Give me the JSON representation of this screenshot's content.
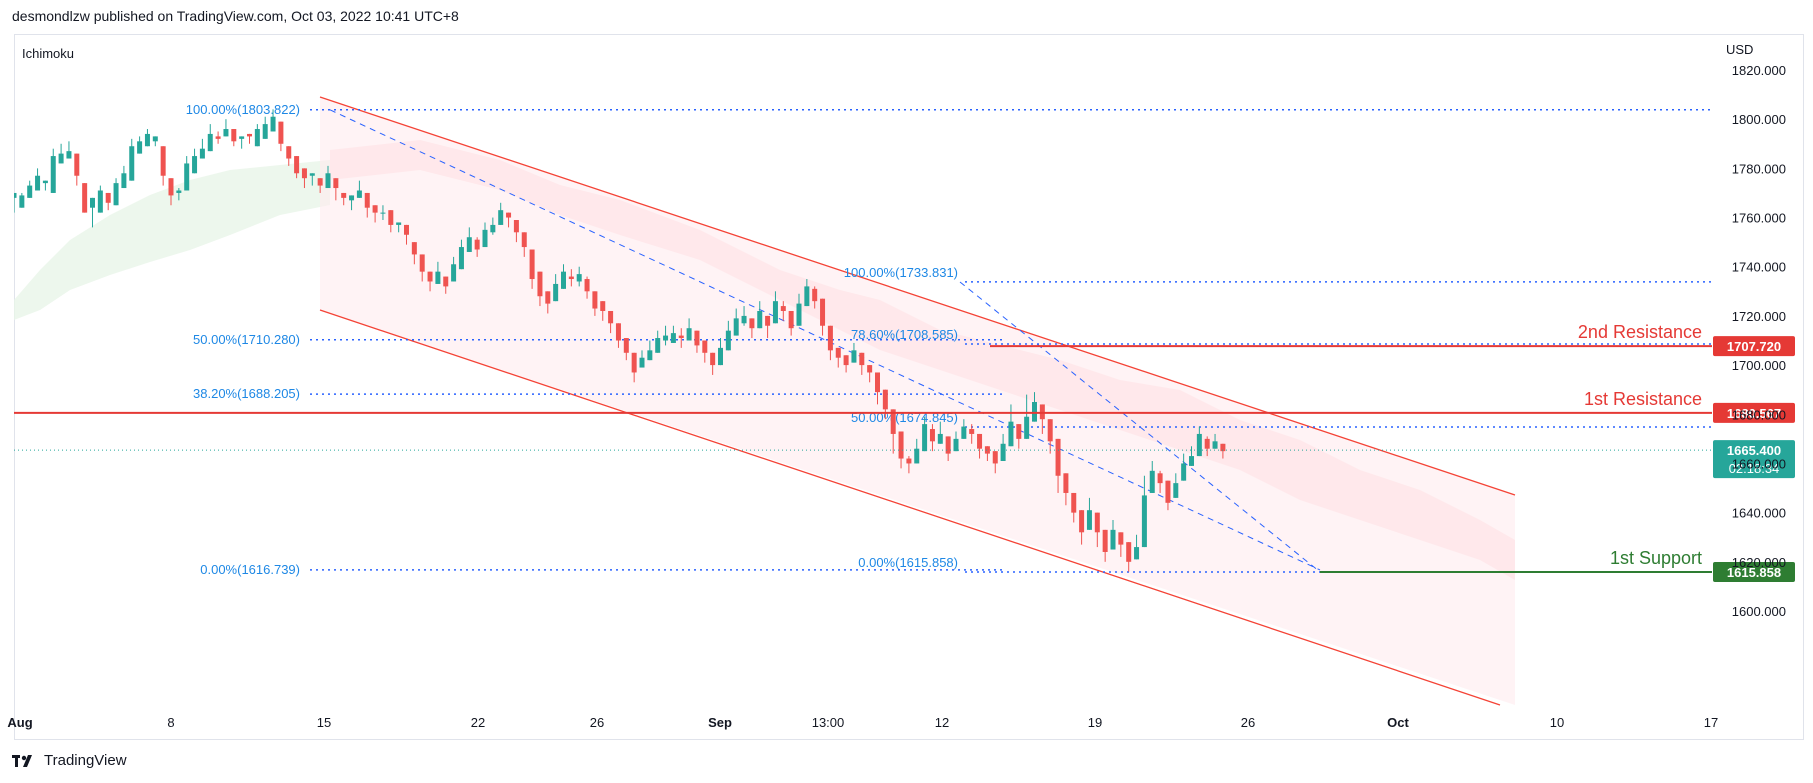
{
  "header": {
    "publisher_text": "desmondlzw published on TradingView.com, Oct 03, 2022 10:41 UTC+8"
  },
  "indicator_label": "Ichimoku",
  "currency": "USD",
  "footer": {
    "brand": "TradingView",
    "logo_icon": "tradingview-logo-icon"
  },
  "colors": {
    "bull": "#26a69a",
    "bear": "#ef5350",
    "channel": "#f44336",
    "fib": "#2962ff",
    "support": "#2e7d32",
    "resistance": "#e53935",
    "price_tag": "#26a69a"
  },
  "chart_data": {
    "type": "candlestick",
    "title": "",
    "xlabel": "",
    "ylabel": "",
    "ylim": [
      1593,
      1822
    ],
    "x_tick_labels": [
      "Aug",
      "8",
      "15",
      "22",
      "26",
      "Sep",
      "13:00",
      "12",
      "19",
      "26",
      "Oct",
      "10",
      "17"
    ],
    "y_tick_labels": [
      "1820.000",
      "1800.000",
      "1780.000",
      "1760.000",
      "1740.000",
      "1720.000",
      "1700.000",
      "1680.000",
      "1660.000",
      "1640.000",
      "1620.000",
      "1600.000"
    ],
    "fib_left": [
      {
        "label": "100.00%(1803.822)",
        "value": 1803.822
      },
      {
        "label": "50.00%(1710.280)",
        "value": 1710.28
      },
      {
        "label": "38.20%(1688.205)",
        "value": 1688.205
      },
      {
        "label": "0.00%(1616.739)",
        "value": 1616.739
      }
    ],
    "fib_right": [
      {
        "label": "100.00%(1733.831)",
        "value": 1733.831
      },
      {
        "label": "78.60%(1708.585)",
        "value": 1708.585
      },
      {
        "label": "50.00%(1674.845)",
        "value": 1674.845
      },
      {
        "label": "0.00%(1615.858)",
        "value": 1615.858
      }
    ],
    "levels": [
      {
        "name": "2nd Resistance",
        "price": 1707.72,
        "tag": "1707.720"
      },
      {
        "name": "1st Resistance",
        "price": 1680.567,
        "tag": "1680.567"
      },
      {
        "name": "1st Support",
        "price": 1615.858,
        "tag": "1615.858"
      }
    ],
    "last_price": {
      "value": 1665.4,
      "label": "1665.400",
      "countdown": "02:18:34"
    },
    "candles": [
      [
        1768,
        1770,
        1765,
        1762
      ],
      [
        1764,
        1769,
        1767,
        1770
      ],
      [
        1768,
        1773,
        1772,
        1775
      ],
      [
        1771,
        1777,
        1776,
        1780
      ],
      [
        1774,
        1775,
        1771,
        1772
      ],
      [
        1770,
        1785,
        1784,
        1788
      ],
      [
        1782,
        1786,
        1784,
        1790
      ],
      [
        1784,
        1787,
        1789,
        1791
      ],
      [
        1786,
        1777,
        1775,
        1773
      ],
      [
        1774,
        1762,
        1768,
        1766
      ],
      [
        1764,
        1768,
        1759,
        1756
      ],
      [
        1762,
        1771,
        1770,
        1773
      ],
      [
        1770,
        1766,
        1768,
        1763
      ],
      [
        1765,
        1774,
        1772,
        1776
      ],
      [
        1772,
        1778,
        1777,
        1781
      ],
      [
        1775,
        1789,
        1788,
        1792
      ],
      [
        1786,
        1791,
        1790,
        1793
      ],
      [
        1789,
        1794,
        1793,
        1796
      ],
      [
        1791,
        1793,
        1789,
        1789
      ],
      [
        1789,
        1777,
        1777,
        1773
      ],
      [
        1776,
        1769,
        1769,
        1765
      ],
      [
        1770,
        1771,
        1772,
        1767
      ],
      [
        1771,
        1782,
        1779,
        1785
      ],
      [
        1778,
        1785,
        1784,
        1788
      ],
      [
        1784,
        1788,
        1789,
        1792
      ],
      [
        1787,
        1794,
        1797,
        1798
      ],
      [
        1793,
        1792,
        1795,
        1790
      ],
      [
        1793,
        1796,
        1797,
        1800
      ],
      [
        1796,
        1791,
        1791,
        1789
      ],
      [
        1792,
        1793,
        1790,
        1788
      ],
      [
        1794,
        1793,
        1794,
        1790
      ],
      [
        1789,
        1796,
        1795,
        1798
      ],
      [
        1792,
        1798,
        1796,
        1801
      ],
      [
        1795,
        1801,
        1801,
        1804
      ],
      [
        1799,
        1790,
        1792,
        1787
      ],
      [
        1789,
        1784,
        1789,
        1781
      ],
      [
        1785,
        1778,
        1781,
        1776
      ],
      [
        1780,
        1776,
        1778,
        1772
      ],
      [
        1777,
        1778,
        1775,
        1773
      ],
      [
        1776,
        1773,
        1775,
        1770
      ],
      [
        1772,
        1778,
        1775,
        1781
      ],
      [
        1776,
        1772,
        1774,
        1767
      ],
      [
        1770,
        1768,
        1769,
        1765
      ],
      [
        1767,
        1769,
        1765,
        1763
      ],
      [
        1768,
        1771,
        1770,
        1775
      ],
      [
        1770,
        1764,
        1768,
        1760
      ],
      [
        1765,
        1762,
        1763,
        1758
      ],
      [
        1762,
        1762,
        1765,
        1759
      ],
      [
        1763,
        1757,
        1758,
        1754
      ],
      [
        1757,
        1758,
        1755,
        1754
      ],
      [
        1757,
        1753,
        1756,
        1749
      ],
      [
        1750,
        1745,
        1748,
        1741
      ],
      [
        1745,
        1738,
        1741,
        1734
      ],
      [
        1738,
        1734,
        1736,
        1730
      ],
      [
        1733,
        1738,
        1734,
        1742
      ],
      [
        1736,
        1732,
        1736,
        1729
      ],
      [
        1734,
        1741,
        1740,
        1744
      ],
      [
        1739,
        1748,
        1746,
        1751
      ],
      [
        1746,
        1752,
        1749,
        1756
      ],
      [
        1751,
        1747,
        1752,
        1744
      ],
      [
        1748,
        1755,
        1754,
        1758
      ],
      [
        1754,
        1757,
        1753,
        1760
      ],
      [
        1757,
        1763,
        1760,
        1766
      ],
      [
        1762,
        1760,
        1761,
        1756
      ],
      [
        1759,
        1754,
        1757,
        1750
      ],
      [
        1754,
        1748,
        1752,
        1744
      ],
      [
        1747,
        1735,
        1741,
        1731
      ],
      [
        1738,
        1728,
        1732,
        1724
      ],
      [
        1730,
        1725,
        1729,
        1721
      ],
      [
        1726,
        1733,
        1730,
        1737
      ],
      [
        1731,
        1738,
        1737,
        1741
      ],
      [
        1736,
        1735,
        1739,
        1732
      ],
      [
        1734,
        1737,
        1732,
        1740
      ],
      [
        1735,
        1730,
        1736,
        1727
      ],
      [
        1730,
        1723,
        1727,
        1720
      ],
      [
        1726,
        1722,
        1724,
        1718
      ],
      [
        1722,
        1717,
        1720,
        1713
      ],
      [
        1717,
        1710,
        1712,
        1707
      ],
      [
        1711,
        1705,
        1708,
        1702
      ],
      [
        1705,
        1697,
        1699,
        1693
      ],
      [
        1699,
        1703,
        1701,
        1706
      ],
      [
        1702,
        1706,
        1705,
        1710
      ],
      [
        1705,
        1711,
        1710,
        1714
      ],
      [
        1710,
        1712,
        1708,
        1716
      ],
      [
        1709,
        1713,
        1711,
        1716
      ],
      [
        1712,
        1711,
        1715,
        1707
      ],
      [
        1710,
        1715,
        1714,
        1719
      ],
      [
        1714,
        1708,
        1712,
        1705
      ],
      [
        1710,
        1705,
        1707,
        1701
      ],
      [
        1705,
        1700,
        1703,
        1696
      ],
      [
        1700,
        1707,
        1705,
        1711
      ],
      [
        1706,
        1714,
        1712,
        1718
      ],
      [
        1712,
        1719,
        1718,
        1723
      ],
      [
        1717,
        1720,
        1716,
        1724
      ],
      [
        1719,
        1715,
        1718,
        1711
      ],
      [
        1715,
        1722,
        1720,
        1726
      ],
      [
        1720,
        1716,
        1718,
        1711
      ],
      [
        1717,
        1726,
        1724,
        1730
      ],
      [
        1724,
        1722,
        1726,
        1718
      ],
      [
        1722,
        1715,
        1719,
        1712
      ],
      [
        1716,
        1725,
        1722,
        1729
      ],
      [
        1724,
        1732,
        1730,
        1735
      ],
      [
        1731,
        1726,
        1732,
        1723
      ],
      [
        1727,
        1716,
        1720,
        1712
      ],
      [
        1716,
        1706,
        1710,
        1702
      ],
      [
        1707,
        1703,
        1705,
        1699
      ],
      [
        1704,
        1700,
        1703,
        1697
      ],
      [
        1701,
        1706,
        1705,
        1709
      ],
      [
        1705,
        1700,
        1703,
        1696
      ],
      [
        1700,
        1697,
        1699,
        1693
      ],
      [
        1697,
        1689,
        1692,
        1684
      ],
      [
        1690,
        1682,
        1685,
        1678
      ],
      [
        1682,
        1672,
        1676,
        1664
      ],
      [
        1673,
        1662,
        1666,
        1658
      ],
      [
        1662,
        1660,
        1663,
        1656
      ],
      [
        1660,
        1666,
        1664,
        1670
      ],
      [
        1665,
        1676,
        1672,
        1679
      ],
      [
        1674,
        1669,
        1676,
        1665
      ],
      [
        1668,
        1672,
        1673,
        1677
      ],
      [
        1671,
        1664,
        1668,
        1661
      ],
      [
        1665,
        1670,
        1668,
        1673
      ],
      [
        1670,
        1675,
        1674,
        1678
      ],
      [
        1674,
        1672,
        1676,
        1668
      ],
      [
        1672,
        1666,
        1669,
        1662
      ],
      [
        1667,
        1664,
        1666,
        1661
      ],
      [
        1665,
        1660,
        1663,
        1656
      ],
      [
        1661,
        1668,
        1665,
        1672
      ],
      [
        1667,
        1677,
        1674,
        1684
      ],
      [
        1676,
        1670,
        1674,
        1666
      ],
      [
        1670,
        1679,
        1676,
        1688
      ],
      [
        1677,
        1685,
        1682,
        1689
      ],
      [
        1684,
        1678,
        1682,
        1672
      ],
      [
        1678,
        1669,
        1673,
        1664
      ],
      [
        1670,
        1655,
        1662,
        1648
      ],
      [
        1656,
        1648,
        1651,
        1643
      ],
      [
        1648,
        1640,
        1643,
        1636
      ],
      [
        1641,
        1632,
        1636,
        1627
      ],
      [
        1633,
        1641,
        1638,
        1646
      ],
      [
        1640,
        1632,
        1636,
        1626
      ],
      [
        1633,
        1624,
        1628,
        1620
      ],
      [
        1625,
        1633,
        1631,
        1637
      ],
      [
        1632,
        1627,
        1630,
        1622
      ],
      [
        1628,
        1620,
        1623,
        1616
      ],
      [
        1621,
        1626,
        1624,
        1631
      ],
      [
        1626,
        1647,
        1640,
        1655
      ],
      [
        1648,
        1657,
        1655,
        1661
      ],
      [
        1656,
        1652,
        1657,
        1648
      ],
      [
        1653,
        1644,
        1649,
        1641
      ],
      [
        1646,
        1652,
        1650,
        1656
      ],
      [
        1653,
        1660,
        1658,
        1664
      ],
      [
        1659,
        1663,
        1662,
        1667
      ],
      [
        1663,
        1672,
        1669,
        1675
      ],
      [
        1670,
        1666,
        1671,
        1663
      ],
      [
        1666,
        1669,
        1668,
        1672
      ],
      [
        1668,
        1665,
        1667,
        1662
      ]
    ]
  }
}
